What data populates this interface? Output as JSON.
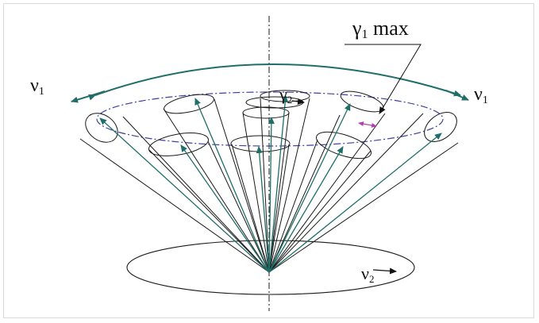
{
  "labels": {
    "gamma1_max": {
      "symbol": "γ",
      "subscript": "1",
      "suffix": " max"
    },
    "gamma2": {
      "symbol": "γ",
      "subscript": "2"
    },
    "nu1_left": {
      "symbol": "ν",
      "subscript": "1"
    },
    "nu1_right": {
      "symbol": "ν",
      "subscript": "1"
    },
    "nu2": {
      "symbol": "ν",
      "subscript": "2"
    }
  },
  "colors": {
    "line": "#1a1a1a",
    "vector": "#1f6f68",
    "ring": "#3f3fa0",
    "angle_arrow": "#b040b0",
    "frame": "#d9d9d9"
  }
}
